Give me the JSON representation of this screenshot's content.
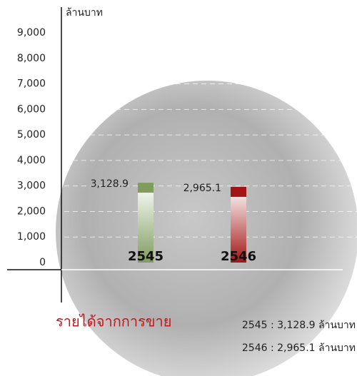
{
  "chart_data": {
    "type": "bar",
    "y_axis_title": "ล้านบาท",
    "categories": [
      "2545",
      "2546"
    ],
    "values": [
      3128.9,
      2965.1
    ],
    "value_labels": [
      "3,128.9",
      "2,965.1"
    ],
    "colors": [
      "#7f9c5e",
      "#a31515"
    ],
    "ylim": [
      0,
      9000
    ],
    "yticks": [
      0,
      {
        "value": 1000,
        "label": "1,000"
      },
      {
        "value": 2000,
        "label": "2,000"
      },
      {
        "value": 3000,
        "label": "3,000"
      },
      {
        "value": 4000,
        "label": "4,000"
      },
      {
        "value": 5000,
        "label": "5,000"
      },
      {
        "value": 6000,
        "label": "6,000"
      },
      {
        "value": 7000,
        "label": "7,000"
      },
      {
        "value": 8000,
        "label": "8,000"
      },
      {
        "value": 9000,
        "label": "9,000"
      }
    ],
    "grid": true,
    "summary_title": "รายได้จากการขาย",
    "summary": [
      "2545 : 3,128.9 ล้านบาท",
      "2546 : 2,965.1 ล้านบาท"
    ]
  }
}
